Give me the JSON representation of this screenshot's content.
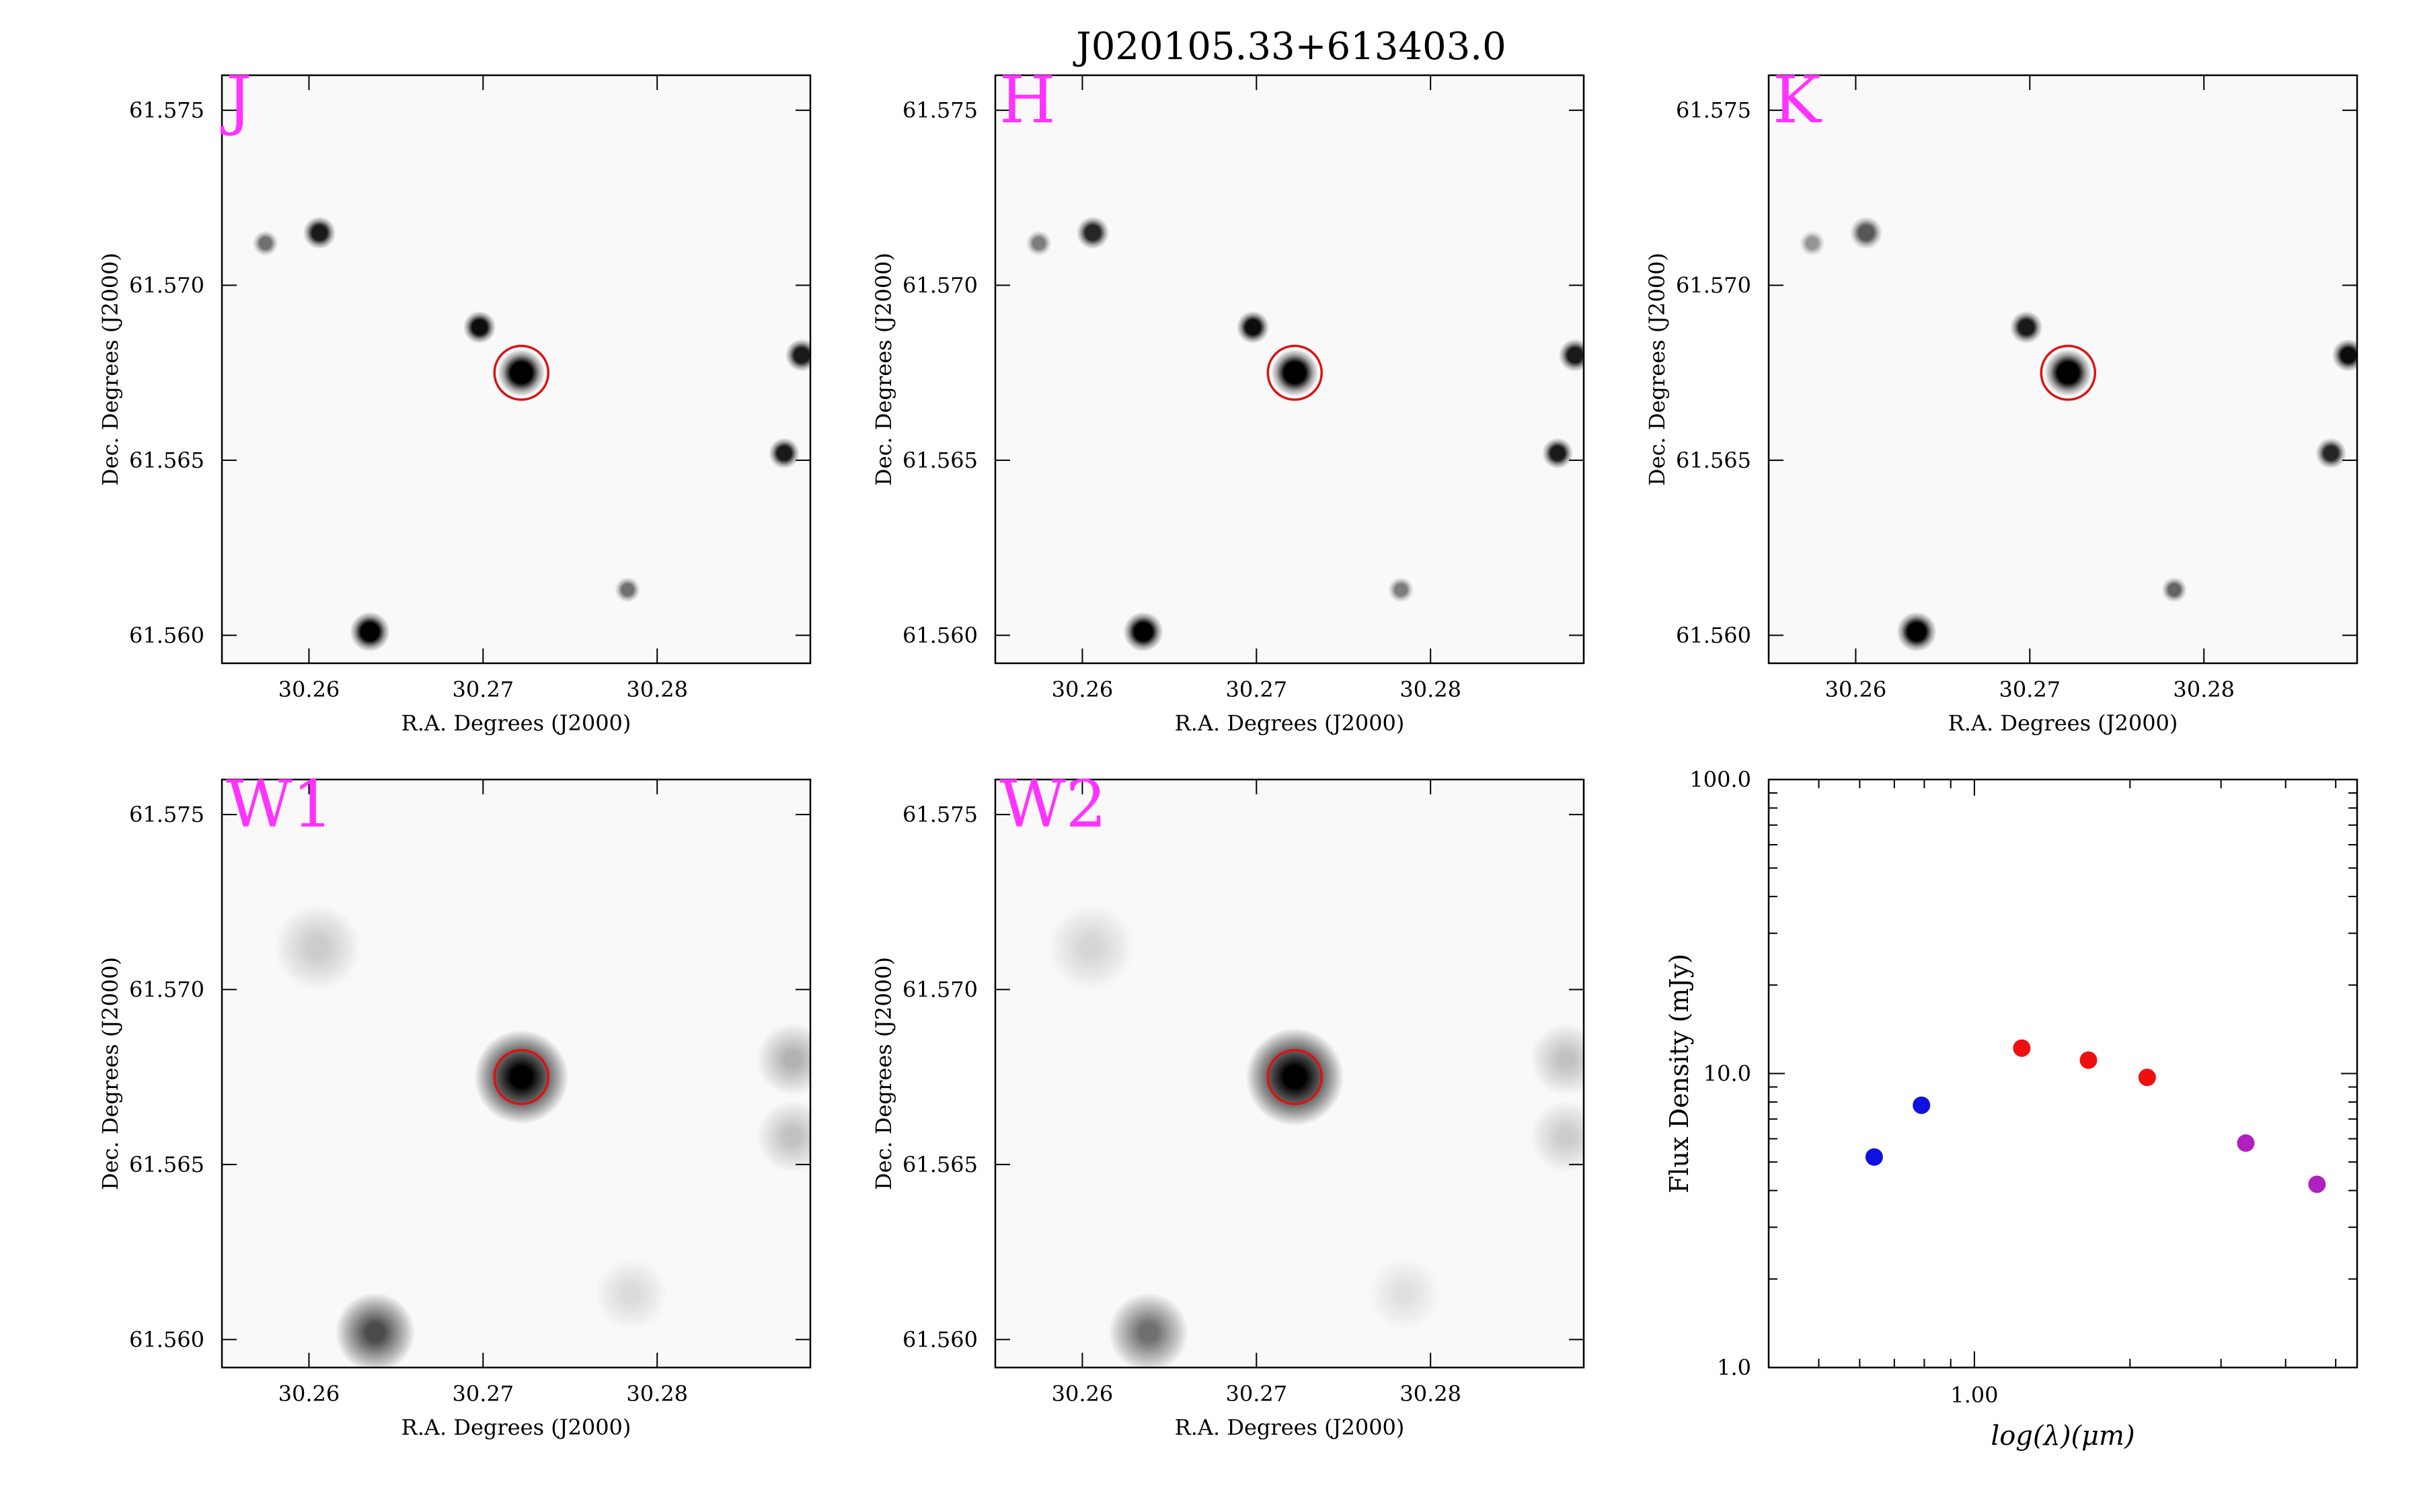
{
  "figure": {
    "title": "J020105.33+613403.0"
  },
  "colors": {
    "band_label": "#ff33ff",
    "aperture": "#e01010",
    "optical_points": "#1010e0",
    "nir_points": "#ee1010",
    "mir_points": "#b020c0"
  },
  "chart_data": [
    {
      "type": "heatmap",
      "band_label": "J",
      "xlabel": "R.A. Degrees (J2000)",
      "ylabel": "Dec. Degrees (J2000)",
      "xlim": [
        30.255,
        30.2888
      ],
      "ylim": [
        61.5592,
        61.576
      ],
      "x_ticks": [
        "30.26",
        "30.27",
        "30.28"
      ],
      "y_ticks": [
        "61.560",
        "61.565",
        "61.570",
        "61.575"
      ],
      "aperture": {
        "ra": 30.2722,
        "dec": 61.5675
      },
      "sources": [
        {
          "ra": 30.2722,
          "dec": 61.5675,
          "size": 1.3,
          "peak": 1.0
        },
        {
          "ra": 30.2698,
          "dec": 61.5688,
          "size": 0.9,
          "peak": 0.95
        },
        {
          "ra": 30.2606,
          "dec": 61.5715,
          "size": 0.9,
          "peak": 0.9
        },
        {
          "ra": 30.2575,
          "dec": 61.5712,
          "size": 0.7,
          "peak": 0.55
        },
        {
          "ra": 30.2883,
          "dec": 61.568,
          "size": 0.9,
          "peak": 0.9
        },
        {
          "ra": 30.2873,
          "dec": 61.5652,
          "size": 0.85,
          "peak": 0.9
        },
        {
          "ra": 30.2635,
          "dec": 61.5601,
          "size": 1.1,
          "peak": 1.0
        },
        {
          "ra": 30.2783,
          "dec": 61.5613,
          "size": 0.7,
          "peak": 0.55
        }
      ]
    },
    {
      "type": "heatmap",
      "band_label": "H",
      "xlabel": "R.A. Degrees (J2000)",
      "ylabel": "Dec. Degrees (J2000)",
      "xlim": [
        30.255,
        30.2888
      ],
      "ylim": [
        61.5592,
        61.576
      ],
      "x_ticks": [
        "30.26",
        "30.27",
        "30.28"
      ],
      "y_ticks": [
        "61.560",
        "61.565",
        "61.570",
        "61.575"
      ],
      "aperture": {
        "ra": 30.2722,
        "dec": 61.5675
      },
      "sources": [
        {
          "ra": 30.2722,
          "dec": 61.5675,
          "size": 1.3,
          "peak": 1.0
        },
        {
          "ra": 30.2698,
          "dec": 61.5688,
          "size": 0.9,
          "peak": 0.95
        },
        {
          "ra": 30.2606,
          "dec": 61.5715,
          "size": 0.9,
          "peak": 0.85
        },
        {
          "ra": 30.2575,
          "dec": 61.5712,
          "size": 0.7,
          "peak": 0.5
        },
        {
          "ra": 30.2883,
          "dec": 61.568,
          "size": 0.9,
          "peak": 0.9
        },
        {
          "ra": 30.2873,
          "dec": 61.5652,
          "size": 0.85,
          "peak": 0.9
        },
        {
          "ra": 30.2635,
          "dec": 61.5601,
          "size": 1.1,
          "peak": 1.0
        },
        {
          "ra": 30.2783,
          "dec": 61.5613,
          "size": 0.7,
          "peak": 0.5
        }
      ]
    },
    {
      "type": "heatmap",
      "band_label": "K",
      "xlabel": "R.A. Degrees (J2000)",
      "ylabel": "Dec. Degrees (J2000)",
      "xlim": [
        30.255,
        30.2888
      ],
      "ylim": [
        61.5592,
        61.576
      ],
      "x_ticks": [
        "30.26",
        "30.27",
        "30.28"
      ],
      "y_ticks": [
        "61.560",
        "61.565",
        "61.570",
        "61.575"
      ],
      "aperture": {
        "ra": 30.2722,
        "dec": 61.5675
      },
      "sources": [
        {
          "ra": 30.2722,
          "dec": 61.5675,
          "size": 1.3,
          "peak": 1.0
        },
        {
          "ra": 30.2698,
          "dec": 61.5688,
          "size": 0.9,
          "peak": 0.9
        },
        {
          "ra": 30.2606,
          "dec": 61.5715,
          "size": 0.9,
          "peak": 0.65
        },
        {
          "ra": 30.2575,
          "dec": 61.5712,
          "size": 0.7,
          "peak": 0.4
        },
        {
          "ra": 30.2883,
          "dec": 61.568,
          "size": 0.9,
          "peak": 0.95
        },
        {
          "ra": 30.2873,
          "dec": 61.5652,
          "size": 0.85,
          "peak": 0.85
        },
        {
          "ra": 30.2635,
          "dec": 61.5601,
          "size": 1.1,
          "peak": 1.0
        },
        {
          "ra": 30.2783,
          "dec": 61.5613,
          "size": 0.7,
          "peak": 0.6
        }
      ]
    },
    {
      "type": "heatmap",
      "band_label": "W1",
      "xlabel": "R.A. Degrees (J2000)",
      "ylabel": "Dec. Degrees (J2000)",
      "xlim": [
        30.255,
        30.2888
      ],
      "ylim": [
        61.5592,
        61.576
      ],
      "x_ticks": [
        "30.26",
        "30.27",
        "30.28"
      ],
      "y_ticks": [
        "61.560",
        "61.565",
        "61.570",
        "61.575"
      ],
      "aperture": {
        "ra": 30.2722,
        "dec": 61.5675
      },
      "sources": [
        {
          "ra": 30.2722,
          "dec": 61.5675,
          "size": 2.6,
          "peak": 1.0
        },
        {
          "ra": 30.2638,
          "dec": 61.5602,
          "size": 2.2,
          "peak": 0.7
        },
        {
          "ra": 30.2605,
          "dec": 61.5712,
          "size": 2.4,
          "peak": 0.18
        },
        {
          "ra": 30.2878,
          "dec": 61.568,
          "size": 2.0,
          "peak": 0.28
        },
        {
          "ra": 30.2878,
          "dec": 61.5658,
          "size": 2.0,
          "peak": 0.22
        },
        {
          "ra": 30.2785,
          "dec": 61.5613,
          "size": 2.0,
          "peak": 0.12
        }
      ]
    },
    {
      "type": "heatmap",
      "band_label": "W2",
      "xlabel": "R.A. Degrees (J2000)",
      "ylabel": "Dec. Degrees (J2000)",
      "xlim": [
        30.255,
        30.2888
      ],
      "ylim": [
        61.5592,
        61.576
      ],
      "x_ticks": [
        "30.26",
        "30.27",
        "30.28"
      ],
      "y_ticks": [
        "61.560",
        "61.565",
        "61.570",
        "61.575"
      ],
      "aperture": {
        "ra": 30.2722,
        "dec": 61.5675
      },
      "sources": [
        {
          "ra": 30.2722,
          "dec": 61.5675,
          "size": 2.7,
          "peak": 1.0
        },
        {
          "ra": 30.2638,
          "dec": 61.5602,
          "size": 2.2,
          "peak": 0.55
        },
        {
          "ra": 30.2605,
          "dec": 61.5712,
          "size": 2.4,
          "peak": 0.14
        },
        {
          "ra": 30.2878,
          "dec": 61.568,
          "size": 2.0,
          "peak": 0.22
        },
        {
          "ra": 30.2878,
          "dec": 61.5658,
          "size": 2.0,
          "peak": 0.18
        },
        {
          "ra": 30.2785,
          "dec": 61.5613,
          "size": 2.0,
          "peak": 0.1
        }
      ]
    },
    {
      "type": "scatter",
      "xlabel": "log(λ)(μm)",
      "ylabel": "Flux Density (mJy)",
      "x_scale": "log",
      "y_scale": "log",
      "xlim": [
        0.4,
        5.5
      ],
      "ylim": [
        1.0,
        100.0
      ],
      "x_ticks": [
        "1.00"
      ],
      "y_ticks": [
        "1.0",
        "10.0",
        "100.0"
      ],
      "series": [
        {
          "color": "#1010e0",
          "x": [
            0.64,
            0.79
          ],
          "y": [
            5.2,
            7.8
          ]
        },
        {
          "color": "#ee1010",
          "x": [
            1.235,
            1.662,
            2.159
          ],
          "y": [
            12.2,
            11.1,
            9.7
          ]
        },
        {
          "color": "#b020c0",
          "x": [
            3.35,
            4.6
          ],
          "y": [
            5.8,
            4.2
          ]
        }
      ]
    }
  ]
}
